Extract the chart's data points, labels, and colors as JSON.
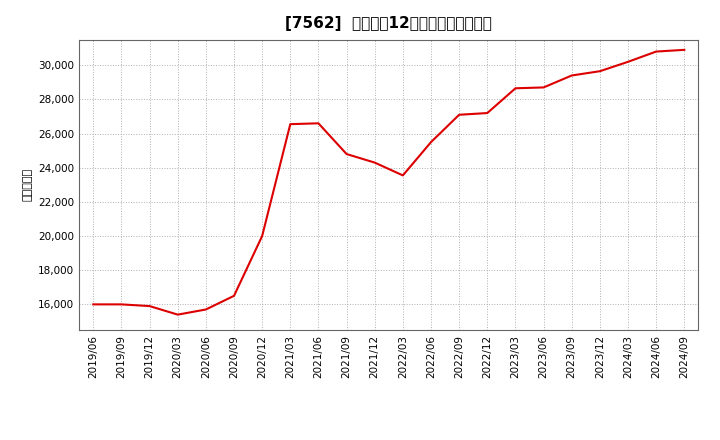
{
  "title": "[7562]  売上高の12か月移動合計の推移",
  "ylabel": "（百万円）",
  "line_color": "#dd0000",
  "background_color": "#ffffff",
  "plot_bg_color": "#ffffff",
  "grid_color": "#b0b0b0",
  "dates": [
    "2019/06",
    "2019/09",
    "2019/12",
    "2020/03",
    "2020/06",
    "2020/09",
    "2020/12",
    "2021/03",
    "2021/06",
    "2021/09",
    "2021/12",
    "2022/03",
    "2022/06",
    "2022/09",
    "2022/12",
    "2023/03",
    "2023/06",
    "2023/09",
    "2023/12",
    "2024/03",
    "2024/06",
    "2024/09"
  ],
  "values": [
    16000,
    16000,
    15900,
    15400,
    15700,
    16500,
    20000,
    26550,
    26600,
    24800,
    24300,
    23550,
    25500,
    27100,
    27200,
    28650,
    28700,
    29400,
    29650,
    30200,
    30800,
    30900
  ],
  "ylim": [
    14500,
    31500
  ],
  "yticks": [
    16000,
    18000,
    20000,
    22000,
    24000,
    26000,
    28000,
    30000
  ],
  "title_fontsize": 11,
  "axis_fontsize": 7.5,
  "ylabel_fontsize": 8
}
